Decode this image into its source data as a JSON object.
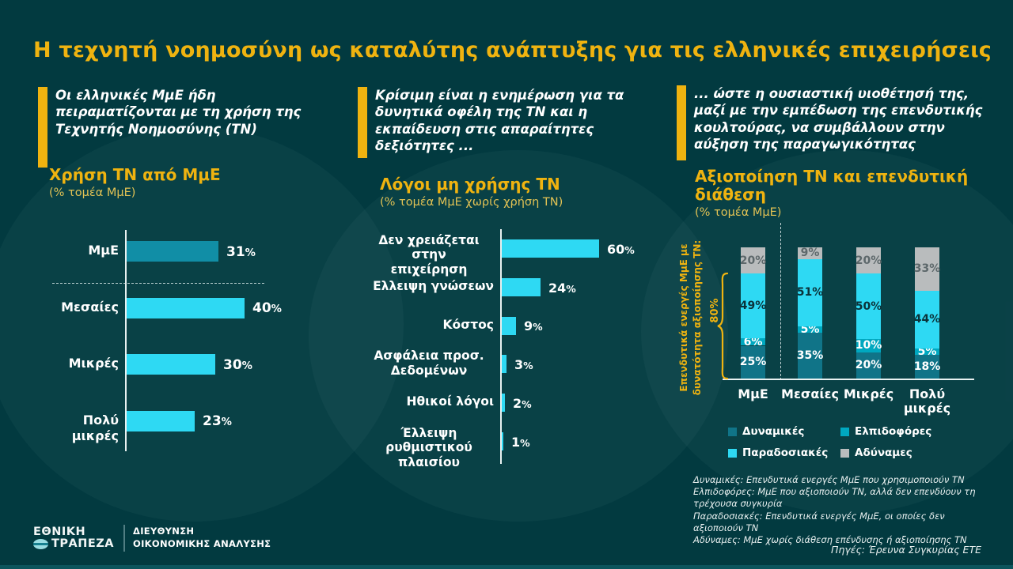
{
  "title": "Η τεχνητή νοημοσύνη ως καταλύτης ανάπτυξης για τις ελληνικές επιχειρήσεις",
  "colors": {
    "background": "#023a40",
    "gold": "#efb310",
    "cyan_bright": "#2ed9f3",
    "teal_total": "#118ea6",
    "teal_dark": "#107488",
    "teal_medium": "#00a8c0",
    "gray": "#b9bcbd",
    "white": "#ffffff"
  },
  "panels": [
    {
      "callout": "Οι ελληνικές ΜμΕ ήδη πειραματίζονται με τη χρήση της Τεχνητής Νοημοσύνης (ΤΝ)"
    },
    {
      "callout": "Κρίσιμη είναι η ενημέρωση για τα δυνητικά οφέλη της ΤΝ και η εκπαίδευση στις απαραίτητες δεξιότητες ..."
    },
    {
      "callout": "... ώστε η ουσιαστική υιοθέτησή της, μαζί με την εμπέδωση της επενδυτικής κουλτούρας, να συμβάλλουν στην αύξηση της παραγωγικότητας"
    }
  ],
  "chart_data": [
    {
      "type": "bar",
      "orientation": "horizontal",
      "title": "Χρήση ΤΝ από ΜμΕ",
      "subtitle": "(% τομέα ΜμΕ)",
      "unit": "%",
      "categories": [
        "ΜμΕ",
        "Μεσαίες",
        "Μικρές",
        "Πολύ μικρές"
      ],
      "values": [
        31,
        40,
        30,
        23
      ],
      "bar_colors": [
        "#118ea6",
        "#2ed9f3",
        "#2ed9f3",
        "#2ed9f3"
      ],
      "separator_after_index": 0,
      "xlim": [
        0,
        45
      ]
    },
    {
      "type": "bar",
      "orientation": "horizontal",
      "title": "Λόγοι μη χρήσης ΤΝ",
      "subtitle": "(% τομέα ΜμΕ χωρίς χρήση ΤΝ)",
      "unit": "%",
      "categories": [
        "Δεν χρειάζεται στην\nεπιχείρηση",
        "Ελλειψη γνώσεων",
        "Κόστος",
        "Ασφάλεια προσ.\nΔεδομένων",
        "Ηθικοί λόγοι",
        "Έλλειψη ρυθμιστικού\nπλαισίου"
      ],
      "values": [
        60,
        24,
        9,
        3,
        2,
        1
      ],
      "bar_colors": [
        "#2ed9f3",
        "#2ed9f3",
        "#2ed9f3",
        "#2ed9f3",
        "#2ed9f3",
        "#2ed9f3"
      ],
      "xlim": [
        0,
        70
      ]
    },
    {
      "type": "stacked-bar",
      "orientation": "vertical",
      "title": "Αξιοποίηση ΤΝ και επενδυτική διάθεση",
      "subtitle": "(% τομέα ΜμΕ)",
      "unit": "%",
      "categories": [
        "ΜμΕ",
        "Μεσαίες",
        "Μικρές",
        "Πολύ μικρές"
      ],
      "series": [
        {
          "name": "Δυναμικές",
          "values": [
            25,
            35,
            20,
            18
          ],
          "color": "#107488",
          "label_color": "#ffffff"
        },
        {
          "name": "Ελπιδοφόρες",
          "values": [
            6,
            5,
            10,
            5
          ],
          "color": "#00a8c0",
          "label_color": "#ffffff"
        },
        {
          "name": "Παραδοσιακές",
          "values": [
            49,
            51,
            50,
            44
          ],
          "color": "#2ed9f3",
          "label_color": "#0b3239"
        },
        {
          "name": "Αδύναμες",
          "values": [
            20,
            9,
            20,
            33
          ],
          "color": "#b9bcbd",
          "label_color": "#5d686b"
        }
      ],
      "ylim": [
        0,
        100
      ],
      "annotation": "Επενδυτικά ενεργές ΜμΕ με\nδυνατότητα αξιοποίησης ΤΝ:",
      "annotation_value": "80%"
    }
  ],
  "footnotes": [
    "Δυναμικές: Επενδυτικά ενεργές ΜμΕ που χρησιμοποιούν ΤΝ",
    "Ελπιδοφόρες: ΜμΕ που αξιοποιούν ΤΝ, αλλά δεν επενδύουν τη τρέχουσα συγκυρία",
    "Παραδοσιακές: Επενδυτικά ενεργές ΜμΕ, οι οποίες δεν αξιοποιούν ΤΝ",
    "Αδύναμες: ΜμΕ χωρίς διάθεση επένδυσης ή αξιοποίησης ΤΝ"
  ],
  "source": "Πηγές: Έρευνα Συγκυρίας ΕΤΕ",
  "footer": {
    "bank_line1": "ΕΘΝΙΚΗ",
    "bank_line2": "ΤΡΑΠΕΖΑ",
    "dept_line1": "ΔΙΕΥΘΥΝΣΗ",
    "dept_line2": "ΟΙΚΟΝΟΜΙΚΗΣ ΑΝΑΛΥΣΗΣ"
  }
}
